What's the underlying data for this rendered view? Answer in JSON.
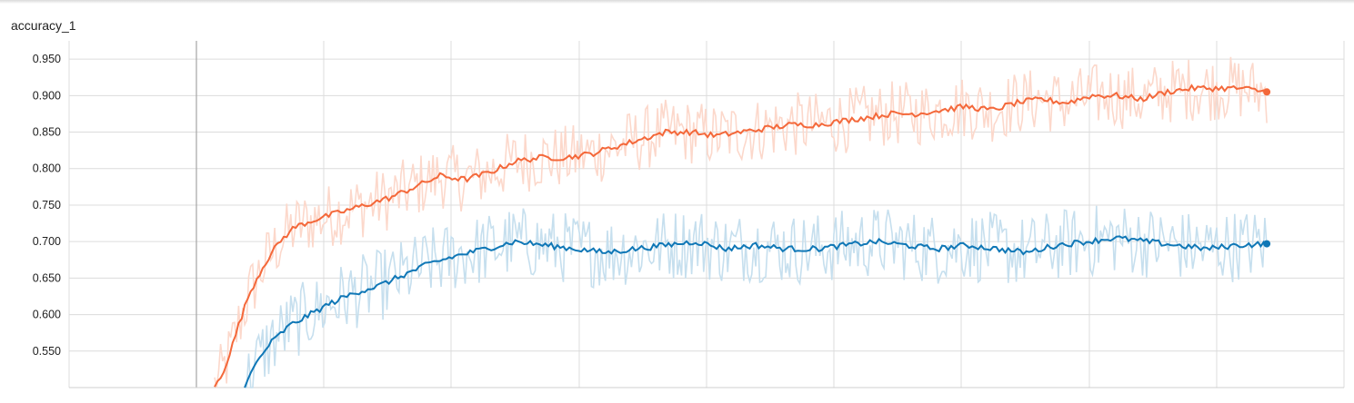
{
  "chart_data": {
    "type": "line",
    "title": "accuracy_1",
    "xlabel": "",
    "ylabel": "",
    "ylim": [
      0.5,
      0.975
    ],
    "xlim": [
      0,
      1000
    ],
    "grid": true,
    "y_ticks": [
      "0.550",
      "0.600",
      "0.650",
      "0.700",
      "0.750",
      "0.800",
      "0.850",
      "0.900",
      "0.950"
    ],
    "series": [
      {
        "color": "#f4683a",
        "raw_color": "#fcd8cb",
        "smoothed": [
          [
            0,
            0.5
          ],
          [
            8,
            0.52
          ],
          [
            16,
            0.55
          ],
          [
            25,
            0.59
          ],
          [
            35,
            0.63
          ],
          [
            50,
            0.67
          ],
          [
            65,
            0.7
          ],
          [
            80,
            0.72
          ],
          [
            100,
            0.73
          ],
          [
            125,
            0.74
          ],
          [
            150,
            0.75
          ],
          [
            175,
            0.76
          ],
          [
            200,
            0.775
          ],
          [
            225,
            0.79
          ],
          [
            250,
            0.785
          ],
          [
            275,
            0.795
          ],
          [
            300,
            0.81
          ],
          [
            325,
            0.815
          ],
          [
            350,
            0.815
          ],
          [
            375,
            0.82
          ],
          [
            400,
            0.83
          ],
          [
            425,
            0.84
          ],
          [
            450,
            0.85
          ],
          [
            475,
            0.85
          ],
          [
            500,
            0.845
          ],
          [
            525,
            0.85
          ],
          [
            550,
            0.855
          ],
          [
            575,
            0.86
          ],
          [
            600,
            0.86
          ],
          [
            625,
            0.865
          ],
          [
            650,
            0.87
          ],
          [
            675,
            0.875
          ],
          [
            700,
            0.875
          ],
          [
            725,
            0.88
          ],
          [
            750,
            0.885
          ],
          [
            775,
            0.88
          ],
          [
            800,
            0.89
          ],
          [
            825,
            0.895
          ],
          [
            850,
            0.89
          ],
          [
            875,
            0.9
          ],
          [
            900,
            0.9
          ],
          [
            925,
            0.895
          ],
          [
            950,
            0.905
          ],
          [
            975,
            0.91
          ],
          [
            1000,
            0.91
          ],
          [
            1025,
            0.91
          ],
          [
            1050,
            0.905
          ]
        ],
        "last": [
          1050,
          0.905
        ]
      },
      {
        "color": "#0f77b6",
        "raw_color": "#c6dfee",
        "smoothed": [
          [
            30,
            0.5
          ],
          [
            40,
            0.53
          ],
          [
            55,
            0.56
          ],
          [
            75,
            0.585
          ],
          [
            95,
            0.6
          ],
          [
            115,
            0.615
          ],
          [
            140,
            0.63
          ],
          [
            165,
            0.64
          ],
          [
            190,
            0.655
          ],
          [
            215,
            0.67
          ],
          [
            240,
            0.68
          ],
          [
            270,
            0.69
          ],
          [
            300,
            0.7
          ],
          [
            330,
            0.695
          ],
          [
            360,
            0.69
          ],
          [
            390,
            0.685
          ],
          [
            420,
            0.69
          ],
          [
            450,
            0.695
          ],
          [
            480,
            0.7
          ],
          [
            510,
            0.69
          ],
          [
            540,
            0.695
          ],
          [
            570,
            0.69
          ],
          [
            600,
            0.69
          ],
          [
            630,
            0.695
          ],
          [
            660,
            0.7
          ],
          [
            690,
            0.695
          ],
          [
            720,
            0.69
          ],
          [
            750,
            0.695
          ],
          [
            780,
            0.69
          ],
          [
            810,
            0.685
          ],
          [
            840,
            0.695
          ],
          [
            870,
            0.7
          ],
          [
            900,
            0.705
          ],
          [
            930,
            0.7
          ],
          [
            960,
            0.695
          ],
          [
            990,
            0.69
          ],
          [
            1020,
            0.695
          ],
          [
            1050,
            0.697
          ]
        ],
        "last": [
          1050,
          0.697
        ]
      }
    ]
  }
}
